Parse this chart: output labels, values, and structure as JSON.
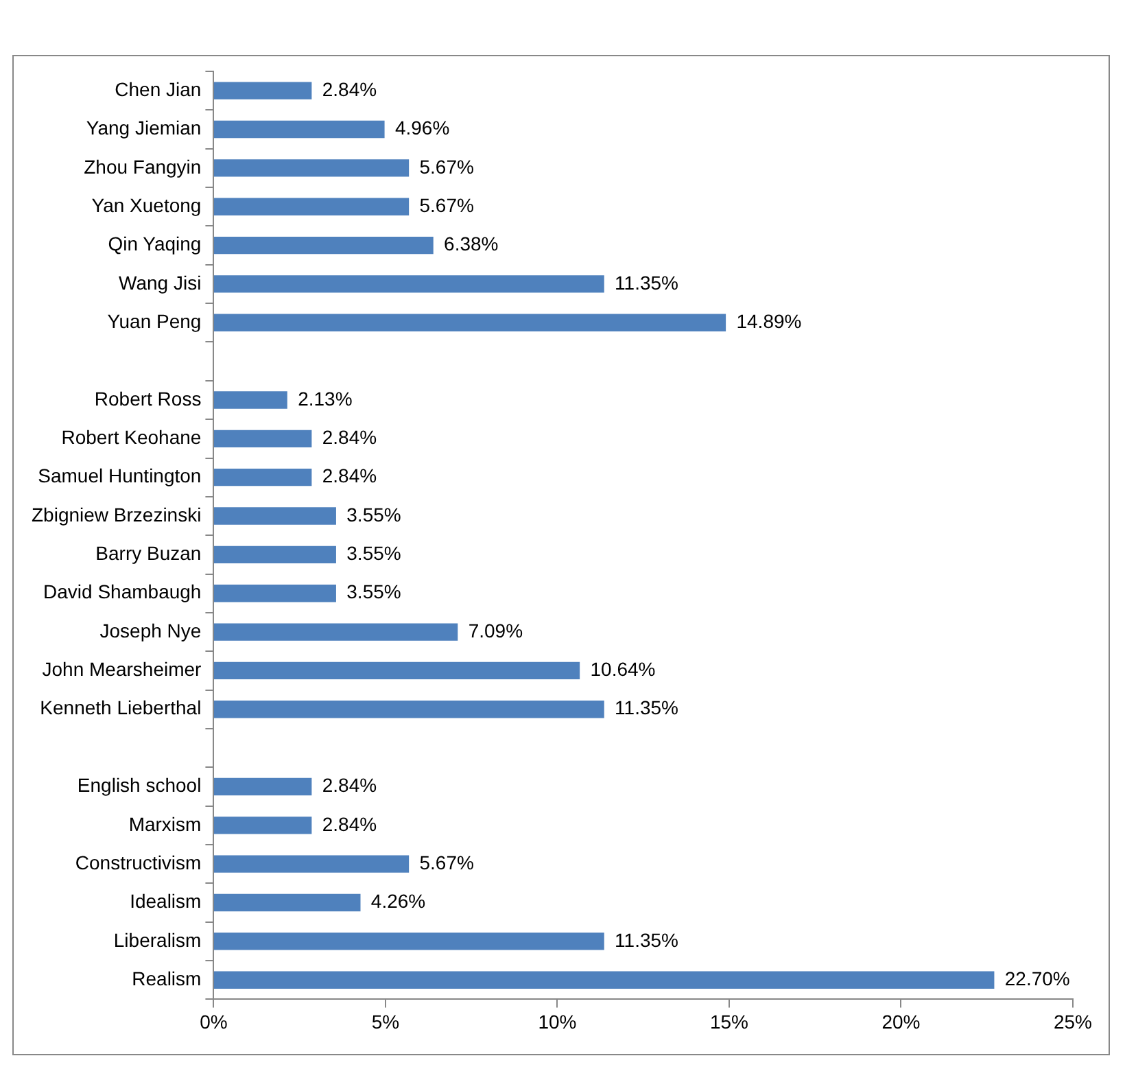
{
  "chart_data": {
    "type": "bar",
    "orientation": "horizontal",
    "categories": [
      "Chen Jian",
      "Yang Jiemian",
      "Zhou Fangyin",
      "Yan Xuetong",
      "Qin Yaqing",
      "Wang Jisi",
      "Yuan Peng",
      null,
      "Robert Ross",
      "Robert Keohane",
      "Samuel Huntington",
      "Zbigniew Brzezinski",
      "Barry Buzan",
      "David Shambaugh",
      "Joseph Nye",
      "John Mearsheimer",
      "Kenneth Lieberthal",
      null,
      "English school",
      "Marxism",
      "Constructivism",
      "Idealism",
      "Liberalism",
      "Realism"
    ],
    "values": [
      2.84,
      4.96,
      5.67,
      5.67,
      6.38,
      11.35,
      14.89,
      null,
      2.13,
      2.84,
      2.84,
      3.55,
      3.55,
      3.55,
      7.09,
      10.64,
      11.35,
      null,
      2.84,
      2.84,
      5.67,
      4.26,
      11.35,
      22.7
    ],
    "value_labels": [
      "2.84%",
      "4.96%",
      "5.67%",
      "5.67%",
      "6.38%",
      "11.35%",
      "14.89%",
      null,
      "2.13%",
      "2.84%",
      "2.84%",
      "3.55%",
      "3.55%",
      "3.55%",
      "7.09%",
      "10.64%",
      "11.35%",
      null,
      "2.84%",
      "2.84%",
      "5.67%",
      "4.26%",
      "11.35%",
      "22.70%"
    ],
    "color": "#4f81bd",
    "xlim": [
      0,
      25
    ],
    "xticks": [
      {
        "value": 0,
        "label": "0%"
      },
      {
        "value": 5,
        "label": "5%"
      },
      {
        "value": 10,
        "label": "10%"
      },
      {
        "value": 15,
        "label": "15%"
      },
      {
        "value": 20,
        "label": "20%"
      },
      {
        "value": 25,
        "label": "25%"
      }
    ],
    "grid": false,
    "legend": false
  }
}
